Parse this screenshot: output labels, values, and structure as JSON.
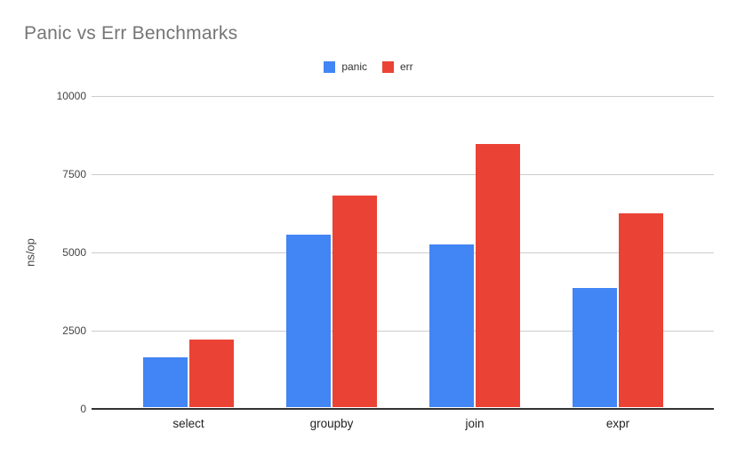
{
  "title": "Panic vs Err Benchmarks",
  "colors": {
    "panic": "#4285f4",
    "err": "#ea4335",
    "title_text": "#757575",
    "gridline": "#cccccc",
    "axis_line": "#333333",
    "tick_text": "#444444",
    "category_text": "#222222",
    "legend_text": "#333333",
    "background": "#ffffff"
  },
  "legend": {
    "items": [
      {
        "label": "panic",
        "color": "#4285f4"
      },
      {
        "label": "err",
        "color": "#ea4335"
      }
    ]
  },
  "chart_data": {
    "type": "bar",
    "title": "Panic vs Err Benchmarks",
    "xlabel": "",
    "ylabel": "ns/op",
    "categories": [
      "select",
      "groupby",
      "join",
      "expr"
    ],
    "series": [
      {
        "name": "panic",
        "color": "#4285f4",
        "values": [
          1600,
          5500,
          5200,
          3800
        ]
      },
      {
        "name": "err",
        "color": "#ea4335",
        "values": [
          2150,
          6750,
          8400,
          6200
        ]
      }
    ],
    "ylim": [
      0,
      10000
    ],
    "yticks": [
      0,
      2500,
      5000,
      7500,
      10000
    ],
    "grid": true,
    "legend_position": "top"
  }
}
